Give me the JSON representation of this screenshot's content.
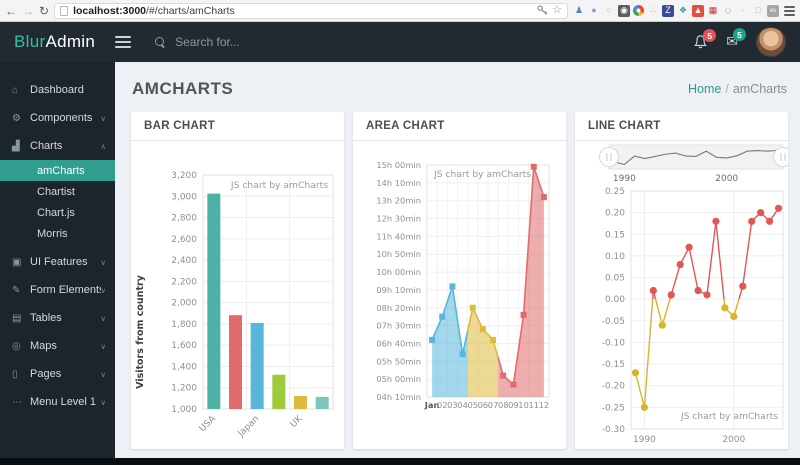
{
  "browser": {
    "url_host": "localhost:3000",
    "url_path": "/#/charts/amCharts",
    "extension_icons": [
      {
        "name": "person",
        "glyph": "♟",
        "bg": "",
        "fg": "#4a86c9"
      },
      {
        "name": "ghost",
        "glyph": "●",
        "bg": "",
        "fg": "#7da7dc"
      },
      {
        "name": "lightbulb",
        "glyph": "○",
        "bg": "",
        "fg": "#b9b9b9"
      },
      {
        "name": "camera",
        "glyph": "◉",
        "bg": "#585d61",
        "fg": "#ffffff"
      },
      {
        "name": "chrome",
        "glyph": "",
        "bg": "",
        "fg": ""
      },
      {
        "name": "share",
        "glyph": "∴",
        "bg": "",
        "fg": "#9aa0a6"
      },
      {
        "name": "zotero",
        "glyph": "Z",
        "bg": "#364b9b",
        "fg": "#ffffff"
      },
      {
        "name": "molecule",
        "glyph": "❖",
        "bg": "",
        "fg": "#2aa198"
      },
      {
        "name": "red-app",
        "glyph": "▲",
        "bg": "#e04f3f",
        "fg": "#ffffff"
      },
      {
        "name": "grid",
        "glyph": "▦",
        "bg": "",
        "fg": "#c0392b"
      },
      {
        "name": "shield",
        "glyph": "◇",
        "bg": "",
        "fg": "#ababab"
      },
      {
        "name": "small-square",
        "glyph": "▫",
        "bg": "",
        "fg": "#c9c9c9"
      },
      {
        "name": "cube",
        "glyph": "□",
        "bg": "",
        "fg": "#b5b5b5"
      },
      {
        "name": "es",
        "glyph": "es",
        "bg": "#a5a5a5",
        "fg": "#ffffff"
      }
    ]
  },
  "header": {
    "logo_primary": "Blur",
    "logo_secondary": "Admin",
    "search_placeholder": "Search for...",
    "bell_badge": "5",
    "mail_badge": "5",
    "accent": "#2fbfa7"
  },
  "sidebar": {
    "active_bg": "#2f9e8e",
    "items": [
      {
        "label": "Dashboard",
        "icon": "home",
        "chevron": ""
      },
      {
        "label": "Components",
        "icon": "gear",
        "chevron": "down"
      },
      {
        "label": "Charts",
        "icon": "bar-chart",
        "chevron": "up",
        "expanded": true,
        "children": [
          {
            "label": "amCharts",
            "active": true
          },
          {
            "label": "Chartist",
            "active": false
          },
          {
            "label": "Chart.js",
            "active": false
          },
          {
            "label": "Morris",
            "active": false
          }
        ]
      },
      {
        "label": "UI Features",
        "icon": "window",
        "chevron": "down"
      },
      {
        "label": "Form Elements",
        "icon": "edit",
        "chevron": "down"
      },
      {
        "label": "Tables",
        "icon": "table",
        "chevron": "down"
      },
      {
        "label": "Maps",
        "icon": "map-pin",
        "chevron": "down"
      },
      {
        "label": "Pages",
        "icon": "file",
        "chevron": "down"
      },
      {
        "label": "Menu Level 1",
        "icon": "dots",
        "chevron": "down"
      }
    ]
  },
  "page": {
    "title": "AMCHARTS",
    "breadcrumb": {
      "home": "Home",
      "separator": "/",
      "current": "amCharts"
    }
  },
  "chart_data": [
    {
      "type": "bar",
      "title": "BAR CHART",
      "ylabel": "Visitors from country",
      "watermark": "JS chart by amCharts",
      "ylim": [
        1000,
        3200
      ],
      "ytick_step": 200,
      "ytick_labels": [
        "1,000",
        "1,200",
        "1,400",
        "1,600",
        "1,800",
        "2,000",
        "2,200",
        "2,400",
        "2,600",
        "2,800",
        "3,000",
        "3,200"
      ],
      "categories": [
        "USA",
        "",
        "Japan",
        "",
        "UK",
        ""
      ],
      "values": [
        3025,
        1882,
        1809,
        1322,
        1122,
        1114
      ],
      "colors": [
        "#4fb0a5",
        "#e06b6b",
        "#58b6db",
        "#9ecb3b",
        "#dcba3b",
        "#7cc7b9"
      ]
    },
    {
      "type": "area",
      "title": "AREA CHART",
      "watermark": "JS chart by amCharts",
      "x_labels": [
        "Jan",
        "02",
        "03",
        "04",
        "05",
        "06",
        "07",
        "08",
        "09",
        "10",
        "11",
        "12"
      ],
      "values_minutes": [
        410,
        475,
        560,
        370,
        500,
        440,
        410,
        310,
        285,
        480,
        895,
        810
      ],
      "ylim_minutes": [
        250,
        900
      ],
      "ytick_step_minutes": 50,
      "ytick_labels": [
        "15h 00min",
        "14h 10min",
        "13h 20min",
        "12h 30min",
        "11h 40min",
        "10h 50min",
        "10h 00min",
        "09h 10min",
        "08h 20min",
        "07h 30min",
        "06h 40min",
        "05h 50min",
        "05h 00min",
        "04h 10min"
      ],
      "segments": [
        {
          "color": "#58b6db",
          "from": 0,
          "to": 3
        },
        {
          "color": "#dcba3b",
          "from": 4,
          "to": 6
        },
        {
          "color": "#e06b6b",
          "from": 7,
          "to": 11
        }
      ],
      "fill_opacity": 0.55
    },
    {
      "type": "line",
      "title": "LINE CHART",
      "watermark": "JS chart by amCharts",
      "years": [
        1989,
        1990,
        1991,
        1992,
        1993,
        1994,
        1995,
        1996,
        1997,
        1998,
        1999,
        2000,
        2001,
        2002,
        2003,
        2004,
        2005
      ],
      "values": [
        -0.17,
        -0.25,
        0.02,
        -0.06,
        0.01,
        0.08,
        0.12,
        0.02,
        0.01,
        0.18,
        -0.02,
        -0.04,
        0.03,
        0.18,
        0.2,
        0.18,
        0.21
      ],
      "ylim": [
        -0.3,
        0.25
      ],
      "ytick_step": 0.05,
      "ytick_labels": [
        "0.25",
        "0.20",
        "0.15",
        "0.10",
        "0.05",
        "0.00",
        "-0.05",
        "-0.10",
        "-0.15",
        "-0.20",
        "-0.25",
        "-0.30"
      ],
      "xtick_years": [
        1990,
        2000
      ],
      "xtick_labels": [
        "1990",
        "2000"
      ],
      "positive_color": "#e25656",
      "negative_color": "#d8b427",
      "navigator": {
        "labels": [
          "1990",
          "2000"
        ],
        "label_years": [
          1990,
          2000
        ]
      }
    }
  ]
}
